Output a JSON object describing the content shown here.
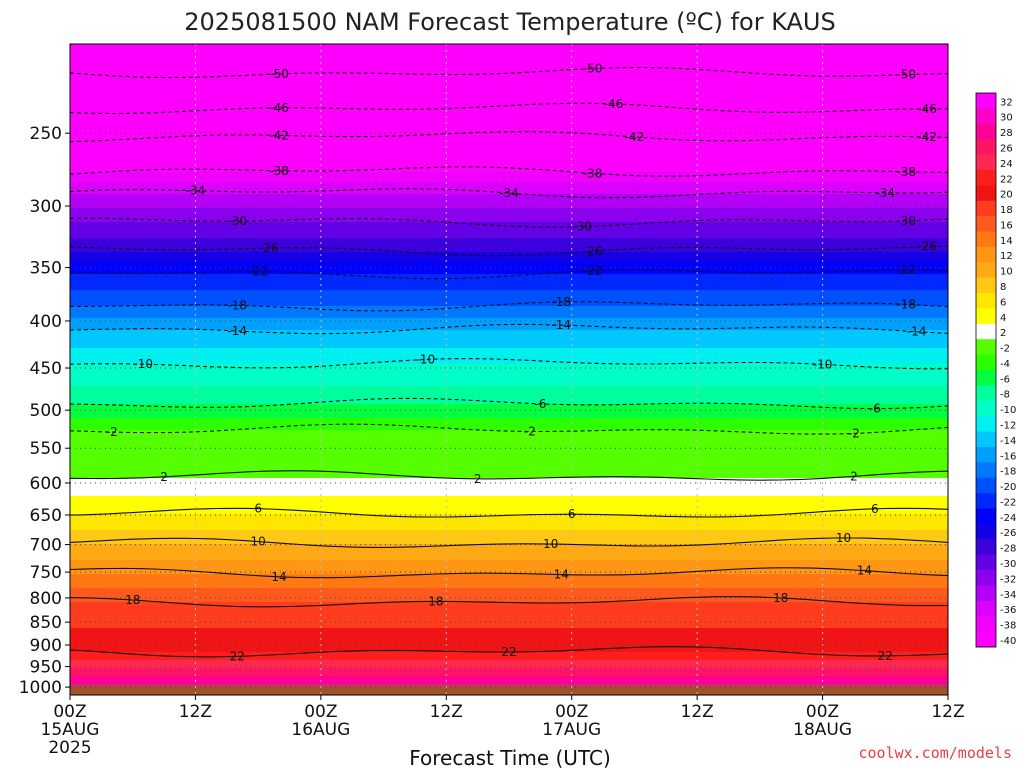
{
  "chart_data": {
    "type": "heatmap",
    "title": "2025081500 NAM Forecast Temperature (ºC) for KAUS",
    "xlabel": "Forecast Time (UTC)",
    "ylabel": "",
    "x_ticks": [
      {
        "hour": 0,
        "label": "00Z",
        "sub": "15AUG",
        "sub2": "2025"
      },
      {
        "hour": 12,
        "label": "12Z",
        "sub": "",
        "sub2": ""
      },
      {
        "hour": 24,
        "label": "00Z",
        "sub": "16AUG",
        "sub2": ""
      },
      {
        "hour": 36,
        "label": "12Z",
        "sub": "",
        "sub2": ""
      },
      {
        "hour": 48,
        "label": "00Z",
        "sub": "17AUG",
        "sub2": ""
      },
      {
        "hour": 60,
        "label": "12Z",
        "sub": "",
        "sub2": ""
      },
      {
        "hour": 72,
        "label": "00Z",
        "sub": "18AUG",
        "sub2": ""
      },
      {
        "hour": 84,
        "label": "12Z",
        "sub": "",
        "sub2": ""
      }
    ],
    "xlim": [
      0,
      84
    ],
    "y_ticks": [
      250,
      300,
      350,
      400,
      450,
      500,
      550,
      600,
      650,
      700,
      750,
      800,
      850,
      900,
      950,
      1000
    ],
    "ylim": [
      200,
      1020
    ],
    "y_scale": "log",
    "ground_color": "#a0522d",
    "colorbar_levels": [
      32,
      30,
      28,
      26,
      24,
      22,
      20,
      18,
      16,
      14,
      12,
      10,
      8,
      6,
      4,
      2,
      -2,
      -4,
      -6,
      -8,
      -10,
      -12,
      -14,
      -16,
      -18,
      -20,
      -22,
      -24,
      -26,
      -28,
      -30,
      -32,
      -34,
      -36,
      -38,
      -40
    ],
    "colorbar_colors": [
      "#ff00ff",
      "#ff00c8",
      "#ff0096",
      "#ff1464",
      "#ff2850",
      "#ff1e1e",
      "#f01414",
      "#ff3c1e",
      "#ff5a1e",
      "#ff7814",
      "#ff9614",
      "#ffaa14",
      "#ffc814",
      "#ffe600",
      "#ffff00",
      "#ffffff",
      "#55ff00",
      "#2cff00",
      "#00ff40",
      "#00ff9c",
      "#00ffc8",
      "#00f0f0",
      "#00c8ff",
      "#00a0ff",
      "#0078ff",
      "#0050ff",
      "#0028ff",
      "#0000ff",
      "#1400e6",
      "#3c00dc",
      "#6400e6",
      "#8c00f0",
      "#b400f8",
      "#dc00ff",
      "#f000ff",
      "#ff00ff"
    ],
    "contours": [
      {
        "label": "-50",
        "pressure": 215,
        "dash": true,
        "label_hours": [
          20,
          50,
          80
        ]
      },
      {
        "label": "-46",
        "pressure": 235,
        "dash": true,
        "label_hours": [
          20,
          52,
          82
        ]
      },
      {
        "label": "-42",
        "pressure": 252,
        "dash": true,
        "label_hours": [
          20,
          54,
          82
        ]
      },
      {
        "label": "-38",
        "pressure": 275,
        "dash": true,
        "label_hours": [
          20,
          50,
          80
        ]
      },
      {
        "label": "-34",
        "pressure": 290,
        "dash": true,
        "label_hours": [
          12,
          42,
          78
        ]
      },
      {
        "label": "-30",
        "pressure": 312,
        "dash": true,
        "label_hours": [
          16,
          49,
          80
        ]
      },
      {
        "label": "-26",
        "pressure": 335,
        "dash": true,
        "label_hours": [
          19,
          50,
          82
        ]
      },
      {
        "label": "-22",
        "pressure": 355,
        "dash": true,
        "label_hours": [
          18,
          50,
          80
        ]
      },
      {
        "label": "-18",
        "pressure": 385,
        "dash": true,
        "label_hours": [
          16,
          47,
          80
        ]
      },
      {
        "label": "-14",
        "pressure": 408,
        "dash": true,
        "label_hours": [
          16,
          47,
          81
        ]
      },
      {
        "label": "-10",
        "pressure": 445,
        "dash": true,
        "label_hours": [
          7,
          34,
          72
        ]
      },
      {
        "label": "-6",
        "pressure": 492,
        "dash": true,
        "label_hours": [
          45,
          77
        ]
      },
      {
        "label": "-2",
        "pressure": 525,
        "dash": true,
        "label_hours": [
          4,
          44,
          75
        ]
      },
      {
        "label": "2",
        "pressure": 590,
        "dash": false,
        "label_hours": [
          9,
          39,
          75
        ]
      },
      {
        "label": "6",
        "pressure": 648,
        "dash": false,
        "label_hours": [
          18,
          48,
          77
        ]
      },
      {
        "label": "10",
        "pressure": 698,
        "dash": false,
        "label_hours": [
          18,
          46,
          74
        ]
      },
      {
        "label": "14",
        "pressure": 752,
        "dash": false,
        "label_hours": [
          20,
          47,
          76
        ]
      },
      {
        "label": "18",
        "pressure": 808,
        "dash": false,
        "label_hours": [
          6,
          35,
          68
        ]
      },
      {
        "label": "22",
        "pressure": 915,
        "dash": false,
        "label_hours": [
          16,
          42,
          78
        ]
      }
    ]
  },
  "credit": "coolwx.com/models"
}
